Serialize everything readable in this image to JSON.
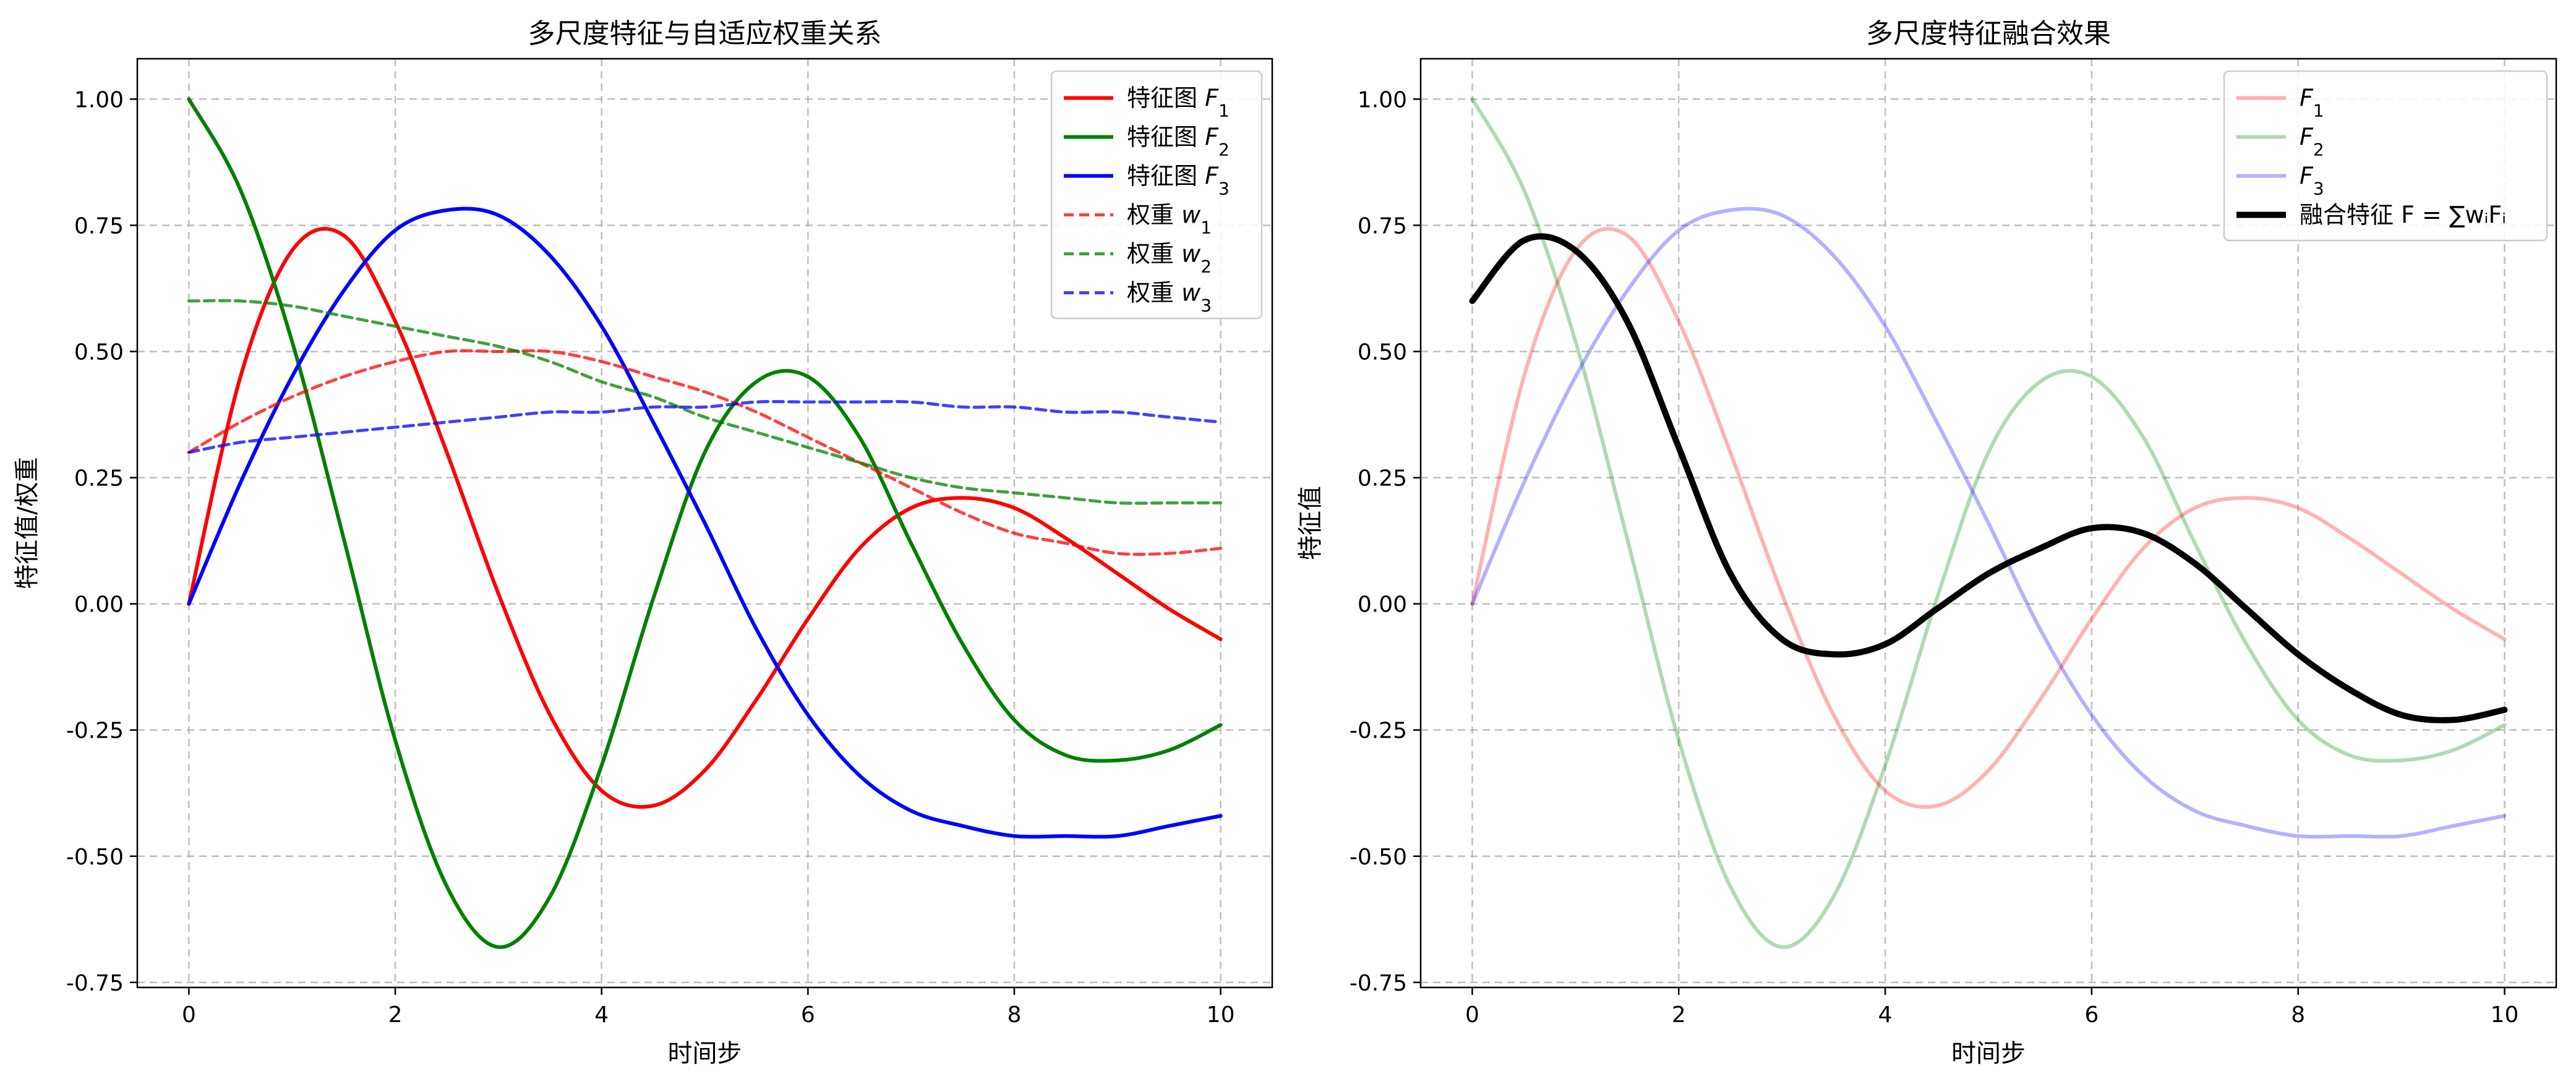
{
  "chart_data": [
    {
      "type": "line",
      "title": "多尺度特征与自适应权重关系",
      "xlabel": "时间步",
      "ylabel": "特征值/权重",
      "xlim": [
        -0.5,
        10.5
      ],
      "ylim": [
        -0.76,
        1.08
      ],
      "xticks": [
        0,
        2,
        4,
        6,
        8,
        10
      ],
      "yticks": [
        -0.75,
        -0.5,
        -0.25,
        0.0,
        0.25,
        0.5,
        0.75,
        1.0
      ],
      "grid": true,
      "legend_position": "top-right",
      "x": [
        0,
        0.5,
        1,
        1.5,
        2,
        2.5,
        3,
        3.5,
        4,
        4.5,
        5,
        5.5,
        6,
        6.5,
        7,
        7.5,
        8,
        8.5,
        9,
        9.5,
        10
      ],
      "series": [
        {
          "name": "特征图 F1",
          "legend_base": "特征图",
          "legend_sym": "F",
          "legend_sub": "1",
          "color": "#ff0000",
          "style": "solid",
          "values": [
            0.0,
            0.45,
            0.7,
            0.73,
            0.56,
            0.3,
            0.02,
            -0.22,
            -0.37,
            -0.4,
            -0.33,
            -0.19,
            -0.03,
            0.11,
            0.19,
            0.21,
            0.19,
            0.13,
            0.06,
            -0.01,
            -0.07
          ]
        },
        {
          "name": "特征图 F2",
          "legend_base": "特征图",
          "legend_sym": "F",
          "legend_sub": "2",
          "color": "#008000",
          "style": "solid",
          "values": [
            1.0,
            0.82,
            0.52,
            0.13,
            -0.27,
            -0.56,
            -0.68,
            -0.58,
            -0.32,
            0.01,
            0.3,
            0.44,
            0.45,
            0.33,
            0.12,
            -0.08,
            -0.23,
            -0.3,
            -0.31,
            -0.29,
            -0.24
          ]
        },
        {
          "name": "特征图 F3",
          "legend_base": "特征图",
          "legend_sym": "F",
          "legend_sub": "3",
          "color": "#0000ff",
          "style": "solid",
          "values": [
            0.0,
            0.24,
            0.45,
            0.62,
            0.74,
            0.78,
            0.77,
            0.69,
            0.55,
            0.36,
            0.16,
            -0.05,
            -0.22,
            -0.34,
            -0.41,
            -0.44,
            -0.46,
            -0.46,
            -0.46,
            -0.44,
            -0.42
          ]
        },
        {
          "name": "权重 w1",
          "legend_base": "权重",
          "legend_sym": "w",
          "legend_sub": "1",
          "color": "#ff0000",
          "style": "dashed",
          "values": [
            0.3,
            0.36,
            0.41,
            0.45,
            0.48,
            0.5,
            0.5,
            0.5,
            0.48,
            0.45,
            0.42,
            0.38,
            0.33,
            0.28,
            0.23,
            0.18,
            0.14,
            0.12,
            0.1,
            0.1,
            0.11
          ]
        },
        {
          "name": "权重 w2",
          "legend_base": "权重",
          "legend_sym": "w",
          "legend_sub": "2",
          "color": "#008000",
          "style": "dashed",
          "values": [
            0.6,
            0.6,
            0.59,
            0.57,
            0.55,
            0.53,
            0.51,
            0.48,
            0.44,
            0.41,
            0.37,
            0.34,
            0.31,
            0.28,
            0.25,
            0.23,
            0.22,
            0.21,
            0.2,
            0.2,
            0.2
          ]
        },
        {
          "name": "权重 w3",
          "legend_base": "权重",
          "legend_sym": "w",
          "legend_sub": "3",
          "color": "#0000ff",
          "style": "dashed",
          "values": [
            0.3,
            0.32,
            0.33,
            0.34,
            0.35,
            0.36,
            0.37,
            0.38,
            0.38,
            0.39,
            0.39,
            0.4,
            0.4,
            0.4,
            0.4,
            0.39,
            0.39,
            0.38,
            0.38,
            0.37,
            0.36
          ]
        }
      ]
    },
    {
      "type": "line",
      "title": "多尺度特征融合效果",
      "xlabel": "时间步",
      "ylabel": "特征值",
      "xlim": [
        -0.5,
        10.5
      ],
      "ylim": [
        -0.76,
        1.08
      ],
      "xticks": [
        0,
        2,
        4,
        6,
        8,
        10
      ],
      "yticks": [
        -0.75,
        -0.5,
        -0.25,
        0.0,
        0.25,
        0.5,
        0.75,
        1.0
      ],
      "grid": true,
      "legend_position": "top-right",
      "x": [
        0,
        0.5,
        1,
        1.5,
        2,
        2.5,
        3,
        3.5,
        4,
        4.5,
        5,
        5.5,
        6,
        6.5,
        7,
        7.5,
        8,
        8.5,
        9,
        9.5,
        10
      ],
      "series": [
        {
          "name": "F1",
          "legend_base": "",
          "legend_sym": "F",
          "legend_sub": "1",
          "color": "#ff0000",
          "opacity": 0.3,
          "style": "solid",
          "values": [
            0.0,
            0.45,
            0.7,
            0.73,
            0.56,
            0.3,
            0.02,
            -0.22,
            -0.37,
            -0.4,
            -0.33,
            -0.19,
            -0.03,
            0.11,
            0.19,
            0.21,
            0.19,
            0.13,
            0.06,
            -0.01,
            -0.07
          ]
        },
        {
          "name": "F2",
          "legend_base": "",
          "legend_sym": "F",
          "legend_sub": "2",
          "color": "#008000",
          "opacity": 0.3,
          "style": "solid",
          "values": [
            1.0,
            0.82,
            0.52,
            0.13,
            -0.27,
            -0.56,
            -0.68,
            -0.58,
            -0.32,
            0.01,
            0.3,
            0.44,
            0.45,
            0.33,
            0.12,
            -0.08,
            -0.23,
            -0.3,
            -0.31,
            -0.29,
            -0.24
          ]
        },
        {
          "name": "F3",
          "legend_base": "",
          "legend_sym": "F",
          "legend_sub": "3",
          "color": "#0000ff",
          "opacity": 0.3,
          "style": "solid",
          "values": [
            0.0,
            0.24,
            0.45,
            0.62,
            0.74,
            0.78,
            0.77,
            0.69,
            0.55,
            0.36,
            0.16,
            -0.05,
            -0.22,
            -0.34,
            -0.41,
            -0.44,
            -0.46,
            -0.46,
            -0.46,
            -0.44,
            -0.42
          ]
        },
        {
          "name": "融合特征 F = ∑wiFi",
          "legend_text": "融合特征 F = ∑wᵢFᵢ",
          "color": "#000000",
          "opacity": 1,
          "style": "bold",
          "values": [
            0.6,
            0.72,
            0.7,
            0.56,
            0.31,
            0.06,
            -0.07,
            -0.1,
            -0.08,
            -0.01,
            0.06,
            0.11,
            0.15,
            0.14,
            0.08,
            -0.01,
            -0.1,
            -0.17,
            -0.22,
            -0.23,
            -0.21
          ]
        }
      ]
    }
  ]
}
